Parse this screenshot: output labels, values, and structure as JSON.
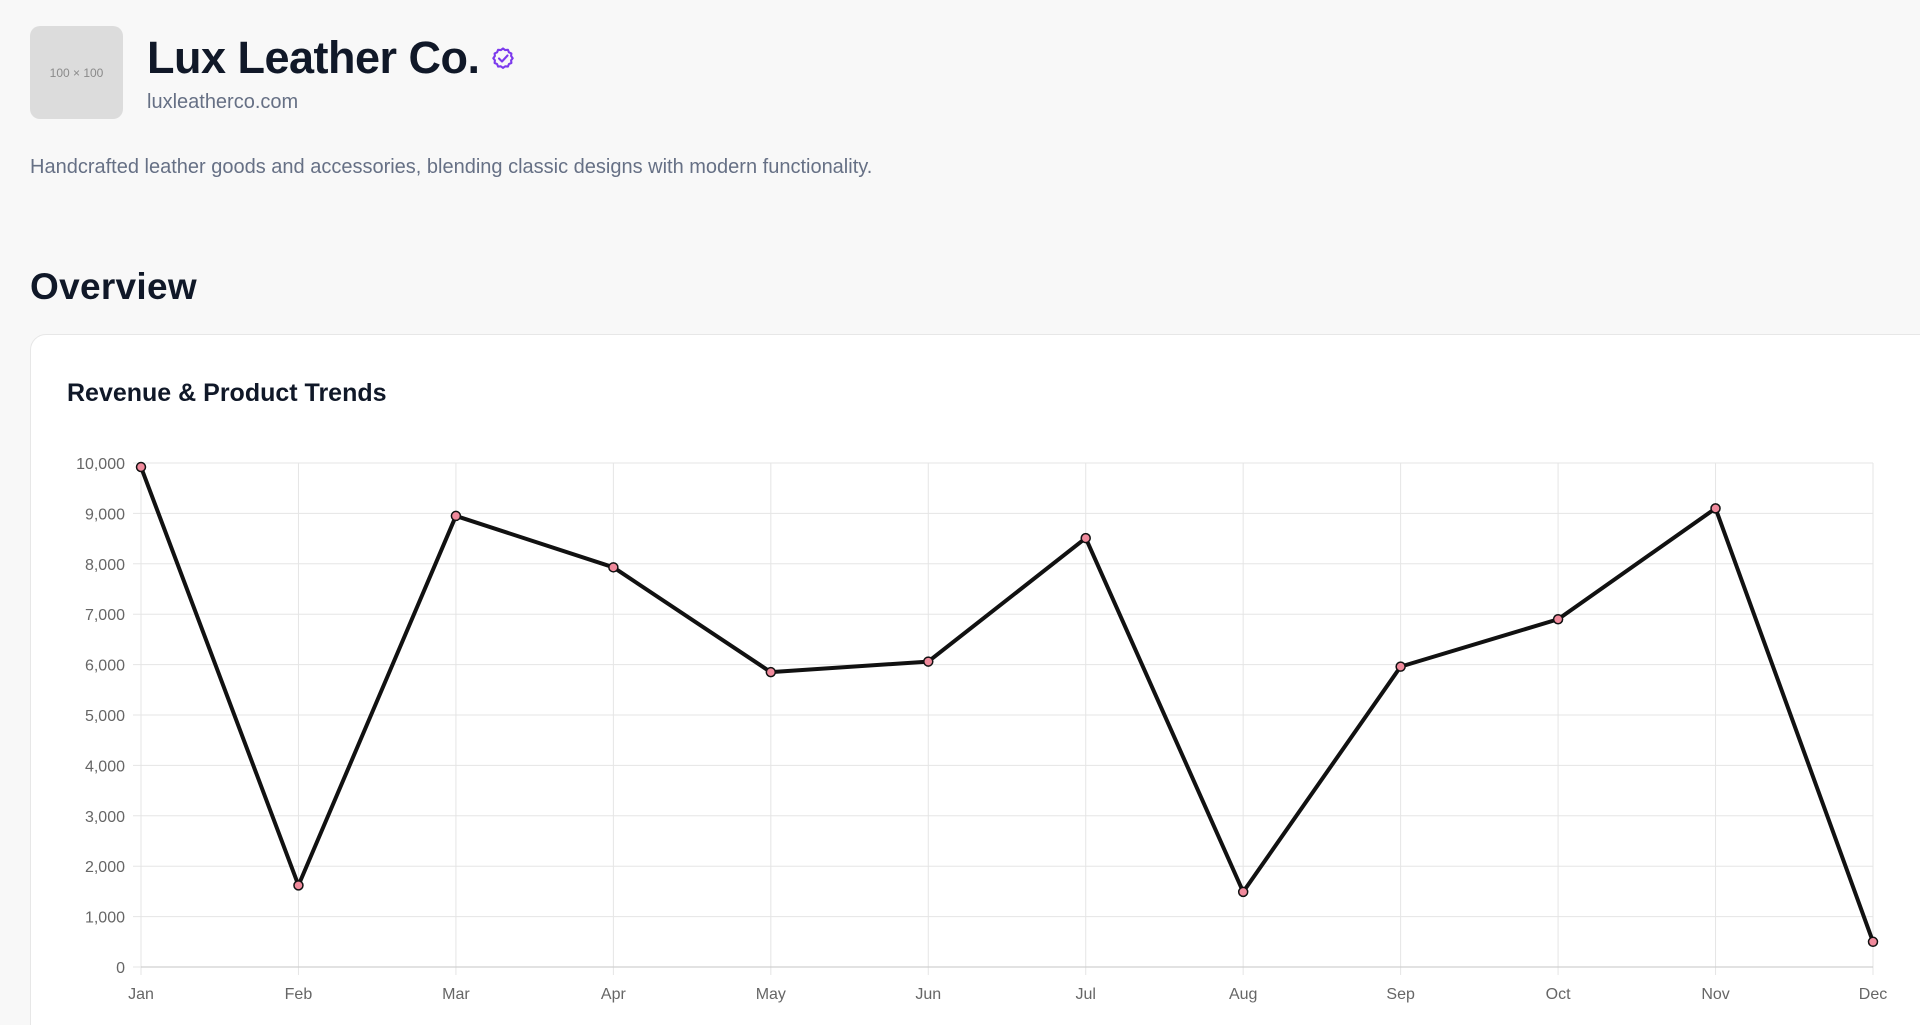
{
  "brand": {
    "logo_placeholder": "100 × 100",
    "name": "Lux Leather Co.",
    "domain": "luxleatherco.com",
    "description": "Handcrafted leather goods and accessories, blending classic designs with modern functionality.",
    "verified_icon": "verified-check-icon",
    "accent_color": "#7c3aed"
  },
  "overview": {
    "title": "Overview"
  },
  "chart_card": {
    "title": "Revenue & Product Trends"
  },
  "chart_data": {
    "type": "line",
    "title": "Revenue & Product Trends",
    "categories": [
      "Jan",
      "Feb",
      "Mar",
      "Apr",
      "May",
      "Jun",
      "Jul",
      "Aug",
      "Sep",
      "Oct",
      "Nov",
      "Dec"
    ],
    "series": [
      {
        "values": [
          9920,
          1620,
          8950,
          7930,
          5850,
          6060,
          8510,
          1490,
          5960,
          6900,
          9100,
          500
        ],
        "line_color": "#111111",
        "point_color": "#f08a9c"
      }
    ],
    "y_ticks": [
      "0",
      "1,000",
      "2,000",
      "3,000",
      "4,000",
      "5,000",
      "6,000",
      "7,000",
      "8,000",
      "9,000",
      "10,000"
    ],
    "ylim": [
      0,
      10000
    ],
    "grid": true,
    "legend": "none"
  }
}
